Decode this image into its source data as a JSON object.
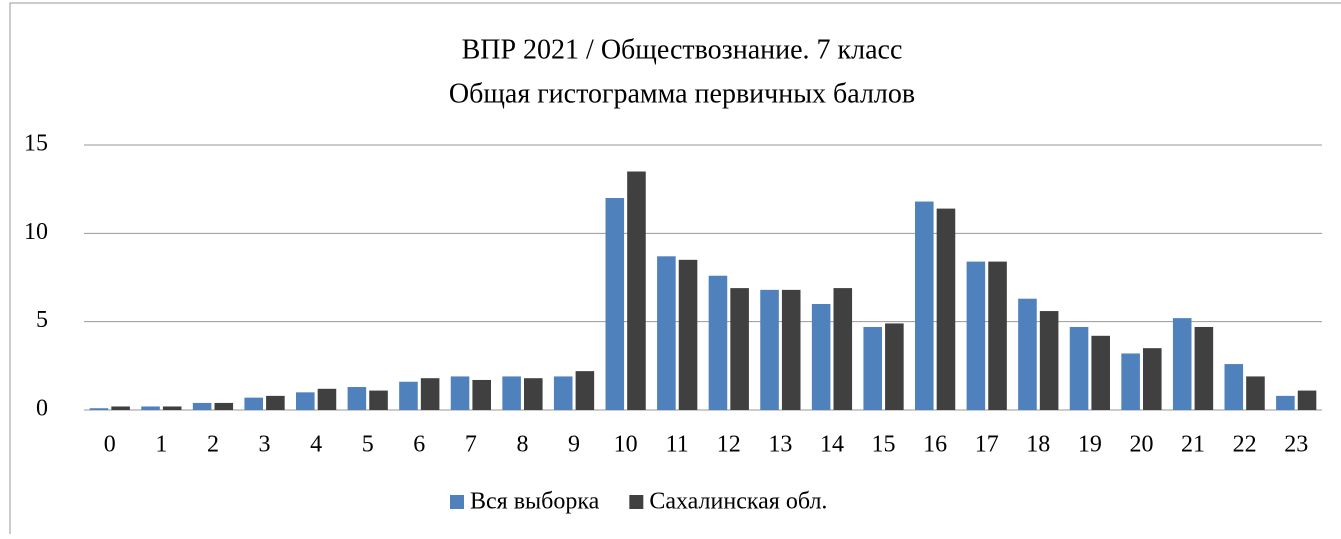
{
  "chart_data": {
    "type": "bar",
    "title": "ВПР 2021 / Обществознание. 7 класс",
    "subtitle": "Общая гистограмма первичных баллов",
    "categories": [
      "0",
      "1",
      "2",
      "3",
      "4",
      "5",
      "6",
      "7",
      "8",
      "9",
      "10",
      "11",
      "12",
      "13",
      "14",
      "15",
      "16",
      "17",
      "18",
      "19",
      "20",
      "21",
      "22",
      "23"
    ],
    "series": [
      {
        "name": "Вся выборка",
        "color": "#4f81bd",
        "values": [
          0.1,
          0.2,
          0.4,
          0.7,
          1.0,
          1.3,
          1.6,
          1.9,
          1.9,
          1.9,
          12.0,
          8.7,
          7.6,
          6.8,
          6.0,
          4.7,
          11.8,
          8.4,
          6.3,
          4.7,
          3.2,
          5.2,
          2.6,
          0.8
        ]
      },
      {
        "name": "Сахалинская обл.",
        "color": "#404040",
        "values": [
          0.2,
          0.2,
          0.4,
          0.8,
          1.2,
          1.1,
          1.8,
          1.7,
          1.8,
          2.2,
          13.5,
          8.5,
          6.9,
          6.8,
          6.9,
          4.9,
          11.4,
          8.4,
          5.6,
          4.2,
          3.5,
          4.7,
          1.9,
          1.1
        ]
      }
    ],
    "ylim": [
      0,
      15
    ],
    "yticks": [
      0,
      5,
      10,
      15
    ],
    "grid": true,
    "legend": "bottom"
  }
}
